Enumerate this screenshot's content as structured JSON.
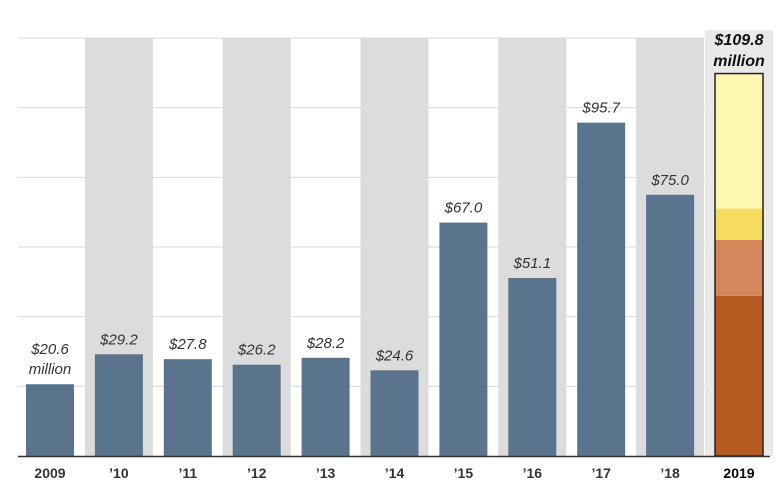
{
  "chart_data": {
    "type": "bar",
    "categories": [
      "2009",
      "’10",
      "’11",
      "’12",
      "’13",
      "’14",
      "’15",
      "’16",
      "’17",
      "’18",
      "2019"
    ],
    "values": [
      20.6,
      29.2,
      27.8,
      26.2,
      28.2,
      24.6,
      67.0,
      51.1,
      95.7,
      75.0,
      109.8
    ],
    "value_labels": [
      "$20.6",
      "$29.2",
      "$27.8",
      "$26.2",
      "$28.2",
      "$24.6",
      "$67.0",
      "$51.1",
      "$95.7",
      "$75.0",
      "$109.8"
    ],
    "unit_label_first": "million",
    "unit_label_last": "million",
    "stacked_last_bar_segments": [
      {
        "value": 46.0,
        "color": "#b75a22"
      },
      {
        "value": 16.0,
        "color": "#d4875a"
      },
      {
        "value": 9.0,
        "color": "#f5db5e"
      },
      {
        "value": 38.8,
        "color": "#fdf6b0"
      }
    ],
    "ylim": [
      0,
      120
    ],
    "grid_values": [
      20,
      40,
      60,
      80,
      100,
      120
    ],
    "grid": true,
    "alternating_bands": true,
    "title": "",
    "xlabel": "",
    "ylabel": "",
    "colors": {
      "bar": "#59748c",
      "band": "#dcdcdc",
      "grid": "#d9d9d9",
      "highlight_band": "#e9e9e9"
    }
  }
}
